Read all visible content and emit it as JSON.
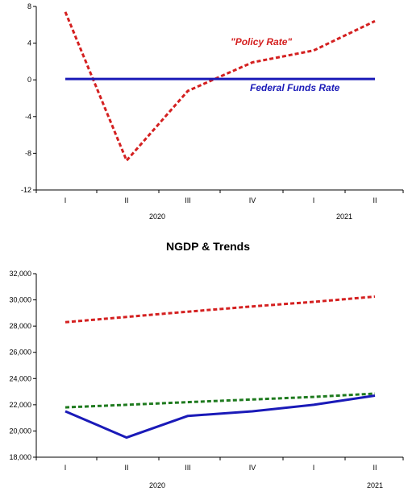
{
  "chart_data": [
    {
      "type": "line",
      "title": "",
      "x_categories": [
        "I",
        "II",
        "III",
        "IV",
        "I",
        "II"
      ],
      "x_groups": [
        {
          "label": "2020"
        },
        {
          "label": "2021"
        }
      ],
      "ylim": [
        -12,
        8
      ],
      "yticks": [
        -12,
        -8,
        -4,
        0,
        4,
        8
      ],
      "ytick_labels": [
        "-12",
        "-8",
        "-4",
        "0",
        "4",
        "8"
      ],
      "grid": false,
      "series": [
        {
          "name": "\"Policy Rate\"",
          "color": "#d42020",
          "style": "dashed",
          "values": [
            7.4,
            -8.8,
            -1.2,
            1.9,
            3.2,
            6.4
          ]
        },
        {
          "name": "Federal Funds Rate",
          "color": "#1a1ab8",
          "style": "solid",
          "values": [
            0.1,
            0.1,
            0.1,
            0.1,
            0.1,
            0.1
          ]
        }
      ],
      "annotations": [
        {
          "text": "\"Policy Rate\"",
          "color": "#d42020"
        },
        {
          "text": "Federal Funds Rate",
          "color": "#1a1ab8"
        }
      ]
    },
    {
      "type": "line",
      "title": "NGDP & Trends",
      "x_categories": [
        "I",
        "II",
        "III",
        "IV",
        "I",
        "II"
      ],
      "x_groups": [
        {
          "label": "2020"
        },
        {
          "label": "2021"
        }
      ],
      "ylim": [
        18000,
        32000
      ],
      "yticks": [
        18000,
        20000,
        22000,
        24000,
        26000,
        28000,
        30000,
        32000
      ],
      "ytick_labels": [
        "18,000",
        "20,000",
        "22,000",
        "24,000",
        "26,000",
        "28,000",
        "30,000",
        "32,000"
      ],
      "grid": false,
      "series": [
        {
          "color": "#d42020",
          "style": "dashed",
          "values": [
            28300,
            28700,
            29100,
            29500,
            29850,
            30250
          ]
        },
        {
          "color": "#1e7a1e",
          "style": "dashed",
          "values": [
            21800,
            22000,
            22200,
            22400,
            22600,
            22850
          ]
        },
        {
          "color": "#1a1ab8",
          "style": "solid",
          "values": [
            21500,
            19500,
            21150,
            21500,
            22000,
            22700
          ]
        }
      ]
    }
  ]
}
